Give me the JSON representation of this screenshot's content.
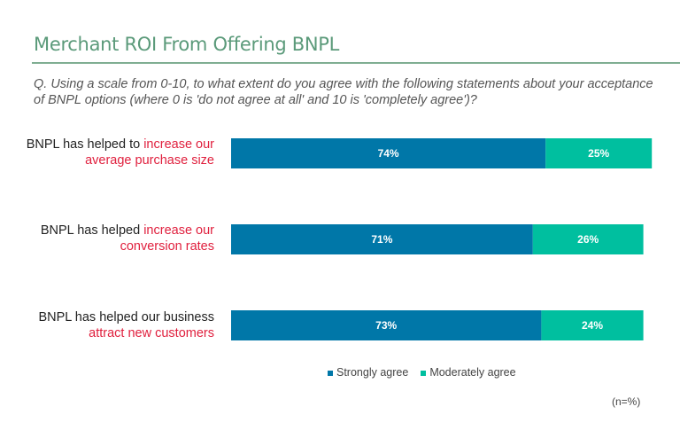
{
  "title": "Merchant ROI From Offering BNPL",
  "question": "Q. Using a scale from 0-10, to what extent do you agree with the following statements about your acceptance of BNPL options (where 0 is 'do not agree at all' and 10 is 'completely agree')?",
  "note": "(n=%)",
  "labels": [
    {
      "plain": "BNPL has helped to ",
      "highlight": "increase our average purchase size"
    },
    {
      "plain": "BNPL has helped ",
      "highlight": "increase our conversion rates"
    },
    {
      "plain": "BNPL has helped our business ",
      "highlight": "attract new customers"
    }
  ],
  "chart_data": {
    "type": "bar",
    "orientation": "horizontal",
    "stacked": true,
    "categories": [
      "BNPL has helped to increase our average purchase size",
      "BNPL has helped increase our conversion rates",
      "BNPL has helped our business attract new customers"
    ],
    "series": [
      {
        "name": "Strongly agree",
        "values": [
          74,
          71,
          73
        ],
        "labels": [
          "74%",
          "71%",
          "73%"
        ],
        "color": "#0077a8"
      },
      {
        "name": "Moderately agree",
        "values": [
          25,
          26,
          24
        ],
        "labels": [
          "25%",
          "26%",
          "24%"
        ],
        "color": "#00bf9f"
      }
    ],
    "legend": "bottom",
    "grid": false,
    "xlim": [
      0,
      100
    ]
  }
}
